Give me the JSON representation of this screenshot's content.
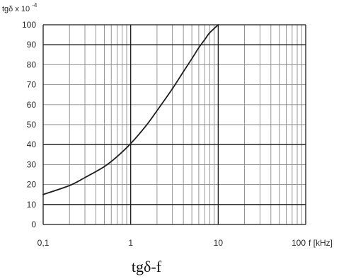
{
  "chart_data": {
    "type": "line",
    "xscale": "log",
    "xlim": [
      0.1,
      100
    ],
    "ylim": [
      0,
      100
    ],
    "xlabel": "f [kHz]",
    "ylabel": "tgδ x 10",
    "ylabel_exponent": "-4",
    "caption": "tgδ-f",
    "grid": true,
    "x_tick_labels": [
      {
        "value": 0.1,
        "label": "0,1"
      },
      {
        "value": 1,
        "label": "1"
      },
      {
        "value": 10,
        "label": "10"
      },
      {
        "value": 100,
        "label": "100"
      }
    ],
    "y_ticks": [
      0,
      10,
      20,
      30,
      40,
      50,
      60,
      70,
      80,
      90,
      100
    ],
    "series": [
      {
        "x": [
          0.1,
          0.2,
          0.3,
          0.5,
          0.7,
          1,
          1.5,
          2,
          3,
          4,
          5,
          6,
          7,
          8,
          10
        ],
        "y": [
          15,
          19.5,
          23.5,
          29,
          34,
          40.5,
          49.5,
          57,
          68,
          76.5,
          83,
          88.5,
          92.5,
          96,
          100
        ]
      }
    ],
    "colors": {
      "line": "#1e1e1e",
      "major_grid": "#1a1a1a",
      "minor_grid": "#8a8a8a",
      "text": "#2a2a2a"
    }
  }
}
